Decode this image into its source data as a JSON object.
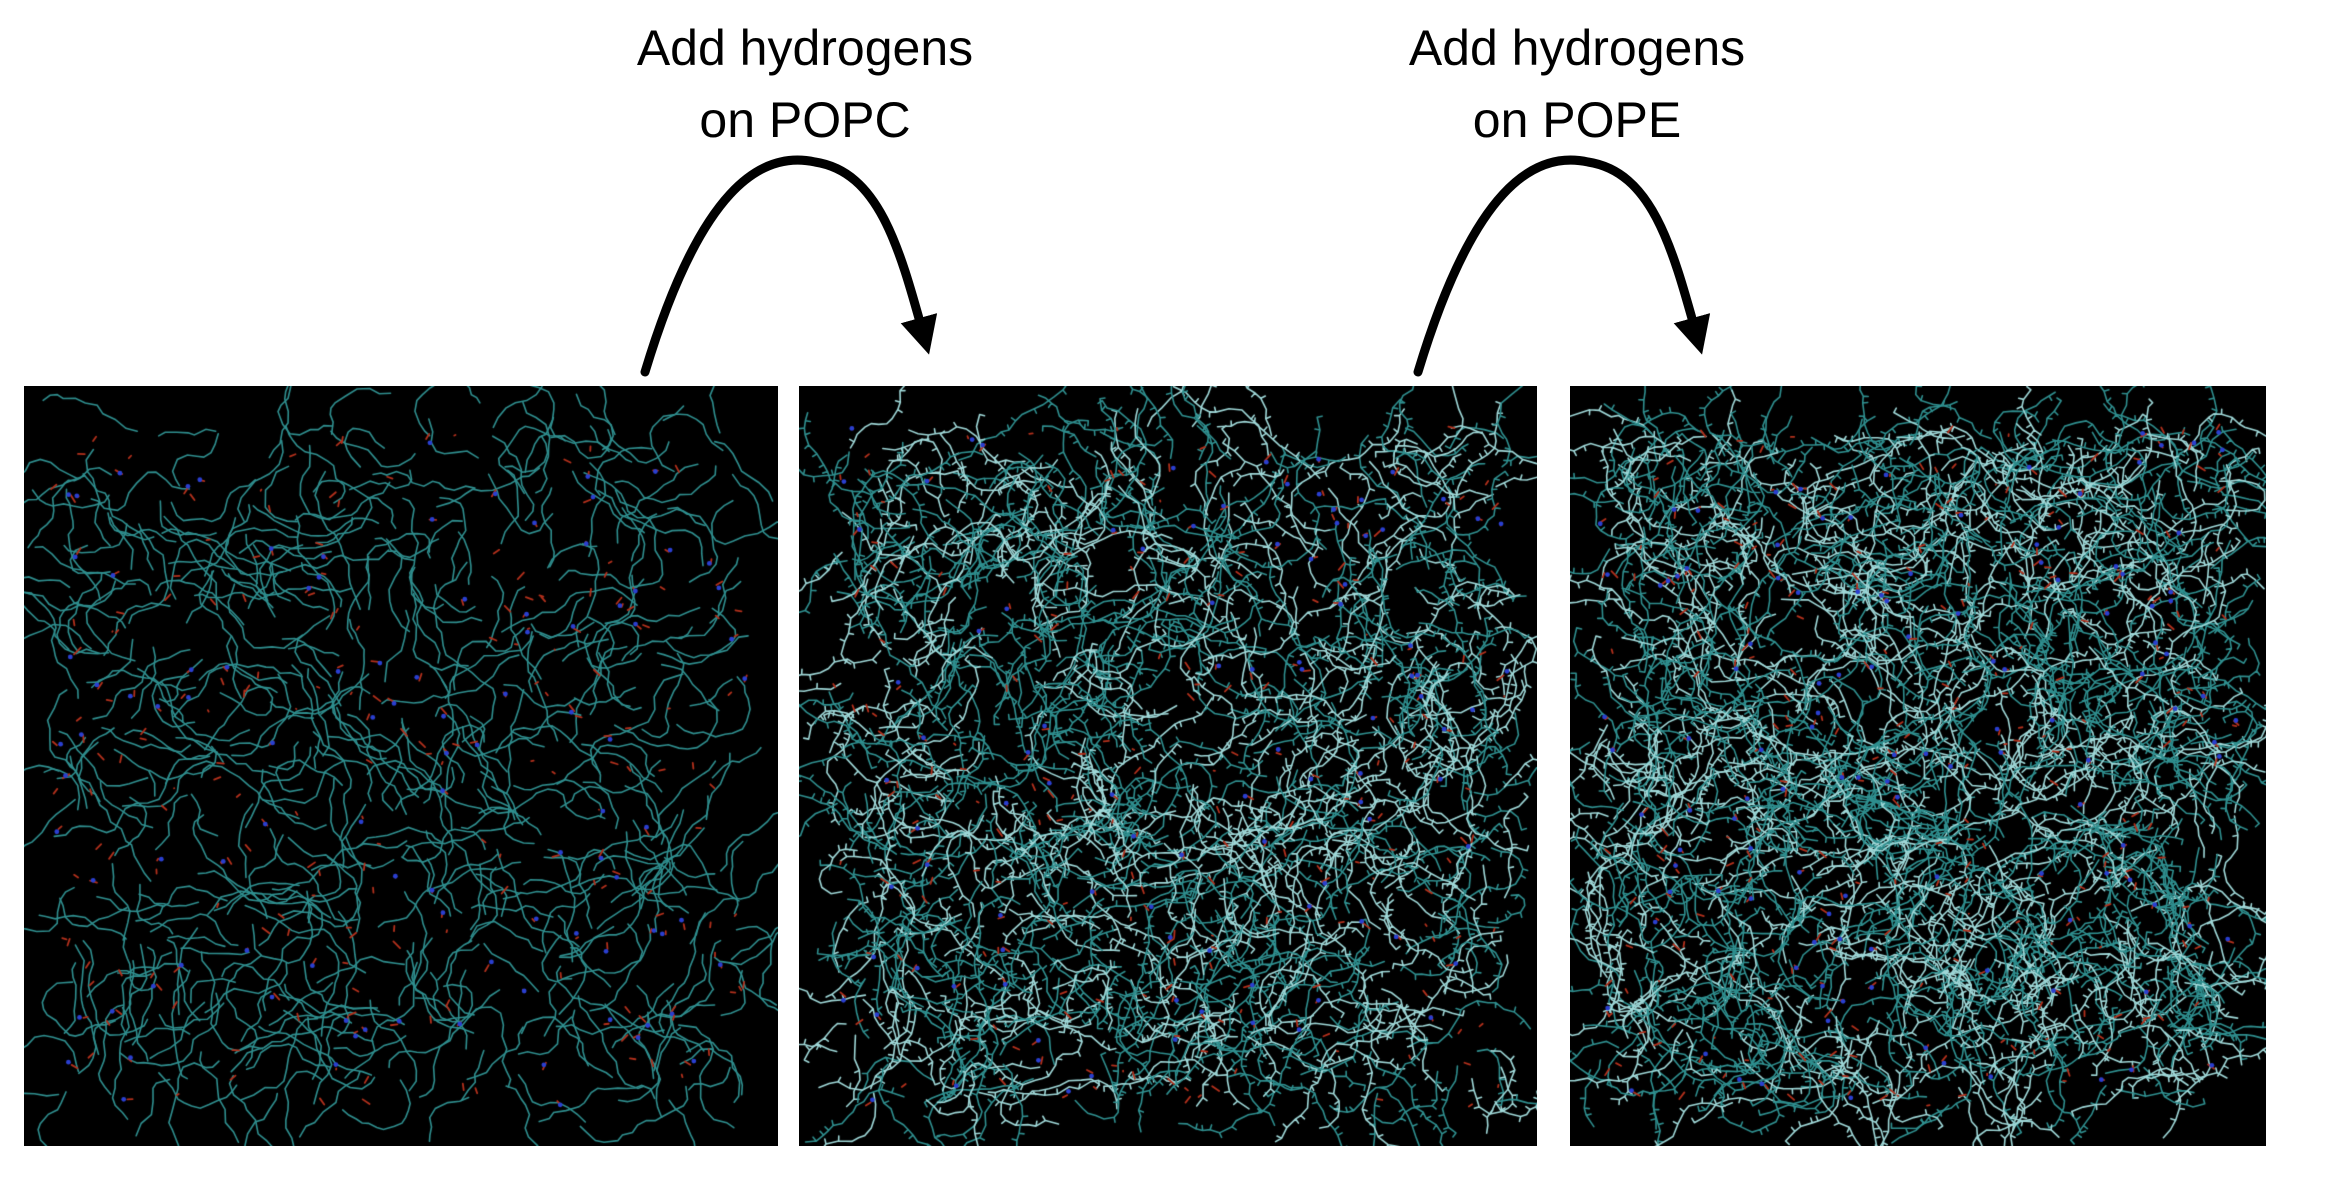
{
  "annotations": [
    {
      "line1": "Add hydrogens",
      "line2": "on POPC"
    },
    {
      "line1": "Add hydrogens",
      "line2": "on POPE"
    }
  ],
  "panels": [
    {
      "stage": "no-hydrogens",
      "density": 0.8,
      "hydrogenated": false
    },
    {
      "stage": "hydrogens-on-POPC",
      "density": 1.4,
      "hydrogenated": true
    },
    {
      "stage": "hydrogens-on-POPC-and-POPE",
      "density": 1.8,
      "hydrogenated": true
    }
  ],
  "colors": {
    "background": "#000000",
    "chain": "#2f8f8f",
    "hydrogen": "#9fd8d8",
    "oxygen": "#b3301c",
    "nitrogen": "#2a3fd0",
    "arrow": "#000000"
  }
}
